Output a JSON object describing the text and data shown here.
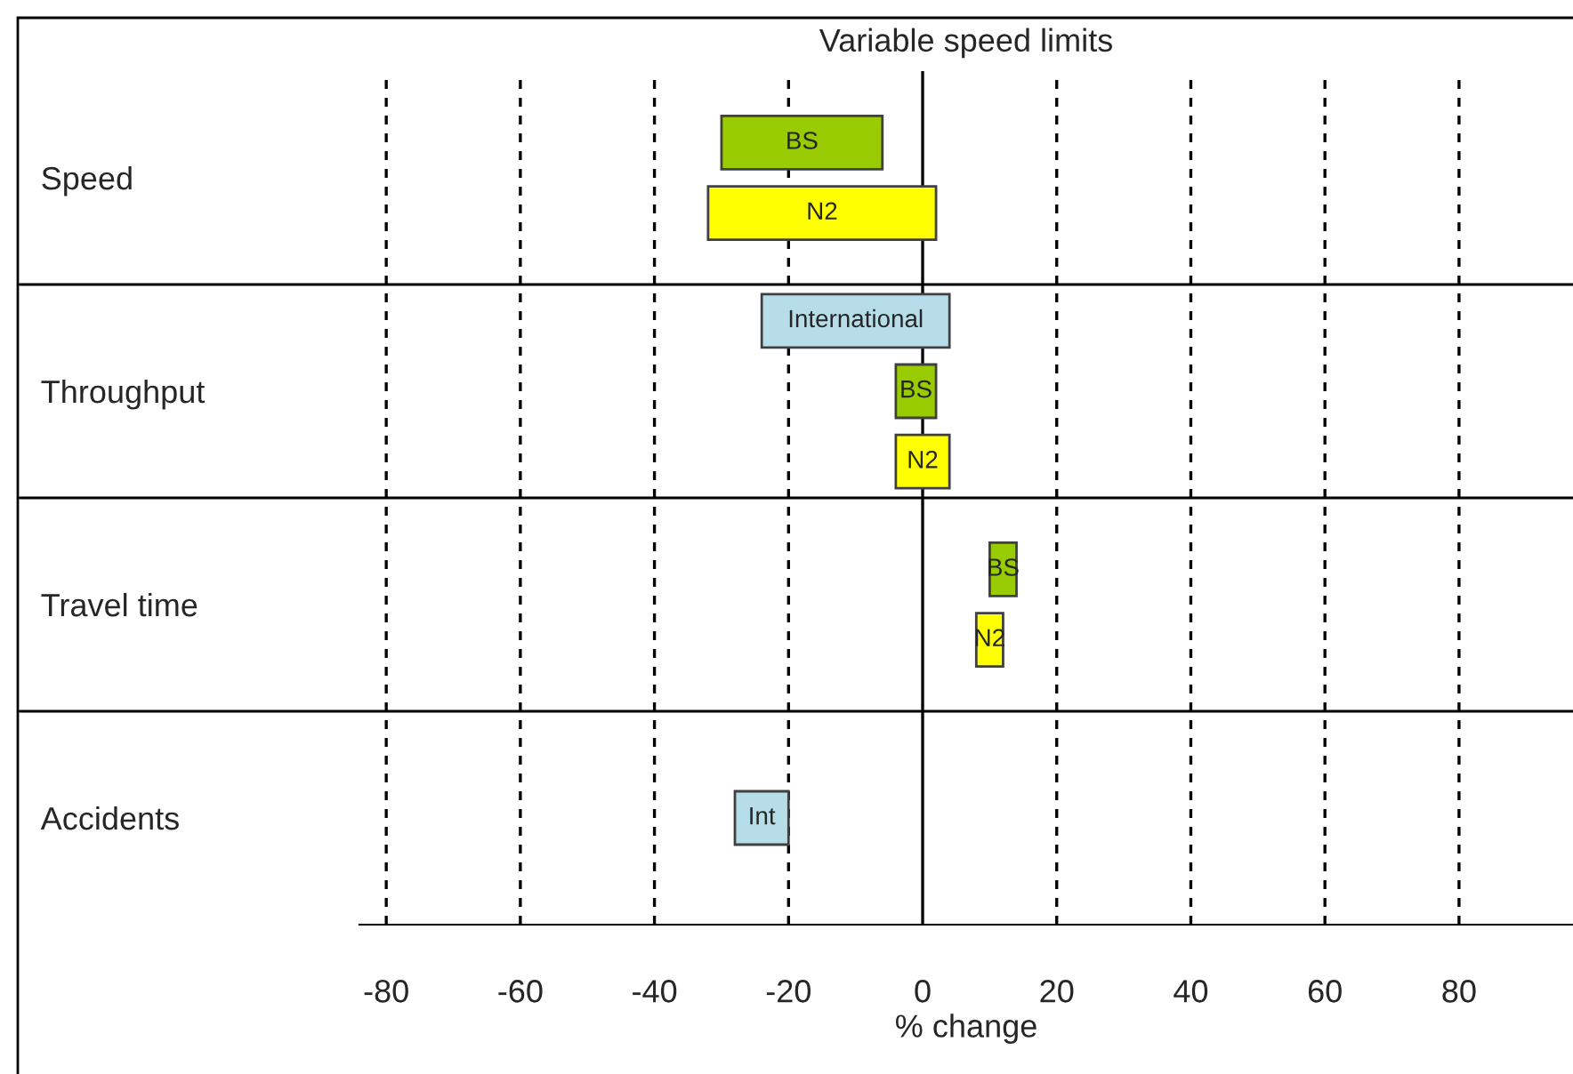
{
  "chart_data": {
    "type": "bar",
    "orientation": "horizontal",
    "title": "Variable speed limits",
    "xlabel": "% change",
    "categories": [
      "Speed",
      "Throughput",
      "Travel time",
      "Accidents"
    ],
    "series": [
      {
        "name": "International",
        "color": "#b7dee8",
        "base": [
          null,
          -24,
          null,
          null
        ],
        "values": [
          null,
          28,
          null,
          null
        ]
      },
      {
        "name": "BS",
        "color": "#99cc00",
        "base": [
          -30,
          -4,
          10,
          null
        ],
        "values": [
          24,
          6,
          4,
          null
        ]
      },
      {
        "name": "N2",
        "color": "#ffff00",
        "base": [
          -32,
          -4,
          8,
          null
        ],
        "values": [
          34,
          8,
          4,
          null
        ]
      },
      {
        "name": "Int",
        "color": "#b7dee8",
        "base": [
          null,
          null,
          null,
          -28
        ],
        "values": [
          null,
          null,
          null,
          8
        ]
      }
    ],
    "xlim": [
      -84,
      97
    ],
    "xticks": [
      -80,
      -60,
      -40,
      -20,
      0,
      20,
      40,
      60,
      80
    ],
    "ref_lines": [
      {
        "axis": "x",
        "value": 0,
        "color": "#000000",
        "line_style": "solid"
      }
    ],
    "grid": "x",
    "line_style": "dashed",
    "legend": false
  }
}
